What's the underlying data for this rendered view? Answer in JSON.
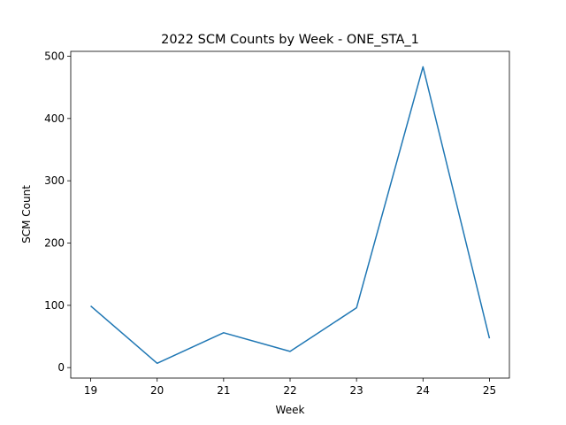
{
  "chart_data": {
    "type": "line",
    "title": "2022 SCM Counts by Week - ONE_STA_1",
    "xlabel": "Week",
    "ylabel": "SCM Count",
    "x": [
      19,
      20,
      21,
      22,
      23,
      24,
      25
    ],
    "series": [
      {
        "values": [
          99,
          7,
          56,
          26,
          96,
          483,
          47
        ],
        "color": "#1f77b4"
      }
    ],
    "xlim": [
      18.7,
      25.3
    ],
    "ylim": [
      -16.8,
      507.8
    ],
    "xticks": [
      "19",
      "20",
      "21",
      "22",
      "23",
      "24",
      "25"
    ],
    "yticks": [
      "0",
      "100",
      "200",
      "300",
      "400",
      "500"
    ],
    "grid": false
  }
}
